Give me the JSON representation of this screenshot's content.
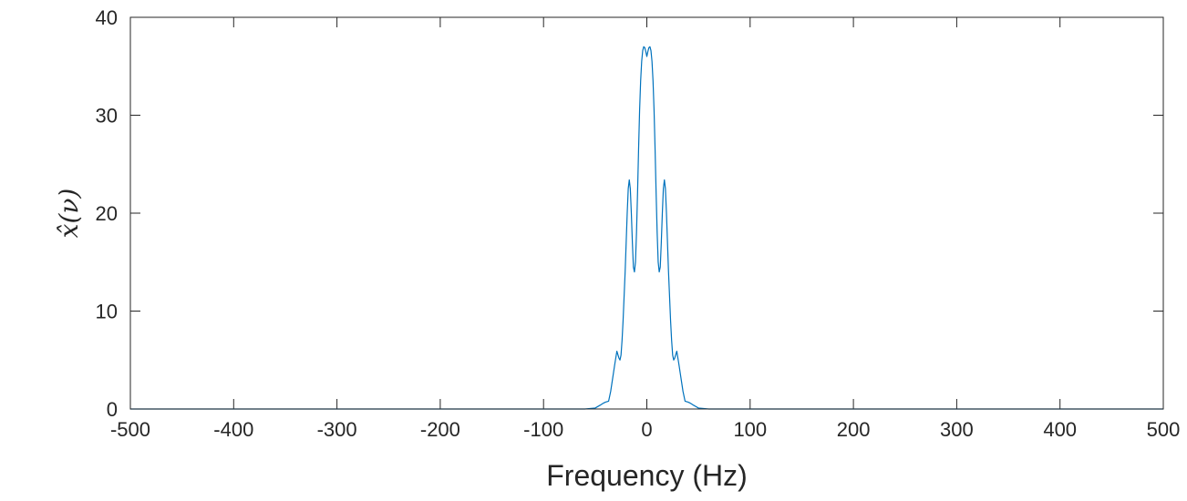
{
  "chart_data": {
    "type": "line",
    "title": "",
    "xlabel": "Frequency (Hz)",
    "ylabel": "x̂(ν)",
    "xlim": [
      -500,
      500
    ],
    "ylim": [
      0,
      40
    ],
    "xticks": [
      -500,
      -400,
      -300,
      -200,
      -100,
      0,
      100,
      200,
      300,
      400,
      500
    ],
    "xtick_labels": [
      "-500",
      "-400",
      "-300",
      "-200",
      "-100",
      "0",
      "100",
      "200",
      "300",
      "400",
      "500"
    ],
    "yticks": [
      0,
      10,
      20,
      30,
      40
    ],
    "ytick_labels": [
      "0",
      "10",
      "20",
      "30",
      "40"
    ],
    "grid": false,
    "line_color": "#0072BD",
    "series": [
      {
        "x": [
          -500,
          -60,
          -50,
          -45,
          -42,
          -40,
          -37,
          -35,
          -33,
          -31,
          -29,
          -27,
          -26,
          -25,
          -24,
          -23,
          -21,
          -19,
          -18,
          -17,
          -16,
          -15,
          -14,
          -13,
          -12,
          -11,
          -10,
          -9,
          -8,
          -7,
          -6,
          -5,
          -4,
          -3,
          -2,
          -1,
          0,
          1,
          2,
          3,
          4,
          5,
          6,
          7,
          8,
          9,
          10,
          11,
          12,
          13,
          14,
          15,
          16,
          17,
          18,
          19,
          21,
          23,
          24,
          25,
          26,
          27,
          29,
          31,
          33,
          35,
          37,
          40,
          42,
          45,
          50,
          60,
          500
        ],
        "y": [
          0,
          0,
          0.1,
          0.4,
          0.6,
          0.7,
          0.8,
          1.8,
          3.2,
          4.6,
          5.9,
          5.2,
          5.0,
          5.5,
          7.0,
          9.0,
          14.0,
          20.0,
          22.5,
          23.4,
          22.5,
          20.0,
          17.0,
          14.5,
          14.0,
          15.0,
          18.0,
          22.0,
          26.5,
          30.5,
          33.5,
          35.5,
          36.6,
          37.0,
          36.9,
          36.5,
          36.0,
          36.5,
          36.9,
          37.0,
          36.6,
          35.5,
          33.5,
          30.5,
          26.5,
          22.0,
          18.0,
          15.0,
          14.0,
          14.5,
          17.0,
          20.0,
          22.5,
          23.4,
          22.5,
          20.0,
          14.0,
          9.0,
          7.0,
          5.5,
          5.0,
          5.2,
          5.9,
          4.6,
          3.2,
          1.8,
          0.8,
          0.7,
          0.6,
          0.4,
          0.1,
          0,
          0
        ]
      }
    ]
  }
}
